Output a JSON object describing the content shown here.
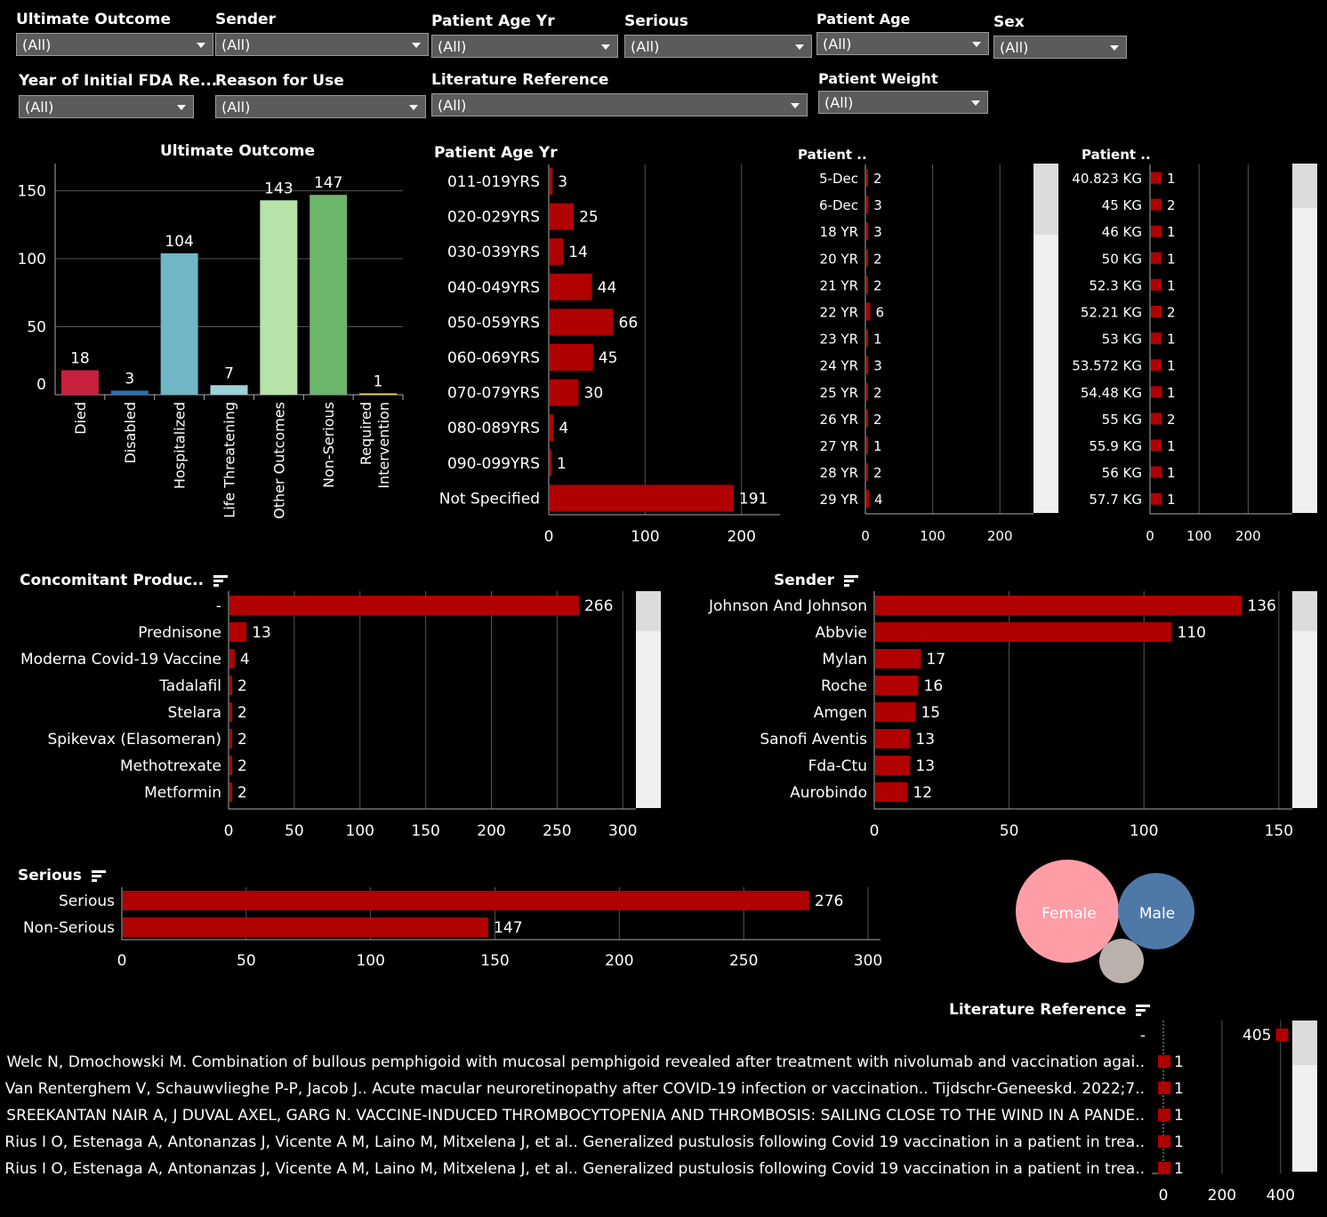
{
  "filters": [
    {
      "label": "Ultimate Outcome",
      "value": "(All)"
    },
    {
      "label": "Sender",
      "value": "(All)"
    },
    {
      "label": "Patient Age Yr",
      "value": "(All)"
    },
    {
      "label": "Serious",
      "value": "(All)"
    },
    {
      "label": "Patient Age",
      "value": "(All)"
    },
    {
      "label": "Sex",
      "value": "(All)"
    },
    {
      "label": "Year of Initial FDA Re...",
      "value": "(All)"
    },
    {
      "label": "Reason for Use",
      "value": "(All)"
    },
    {
      "label": "Literature Reference",
      "value": "(All)"
    },
    {
      "label": "Patient Weight",
      "value": "(All)"
    }
  ],
  "colors": {
    "bar": "#b00000",
    "background": "#000000",
    "grid": "#555555",
    "scroll_track": "#f0f0f0",
    "scroll_thumb": "#dcdcdc"
  },
  "chart_data": [
    {
      "id": "outcome",
      "type": "bar",
      "title": "Ultimate Outcome",
      "categories": [
        "Died",
        "Disabled",
        "Hospitalized",
        "Life Threatening",
        "Other Outcomes",
        "Non-Serious",
        "Required Intervention"
      ],
      "values": [
        18,
        3,
        104,
        7,
        143,
        147,
        1
      ],
      "colors": [
        "#c8203f",
        "#2f6fa8",
        "#6fb6c6",
        "#9cd2d8",
        "#b5e3a8",
        "#6cb66a",
        "#e6d34e"
      ],
      "yticks": [
        0,
        50,
        100,
        150
      ],
      "ylim": [
        0,
        170
      ],
      "grid": true
    },
    {
      "id": "age",
      "type": "bar",
      "orientation": "horizontal",
      "title": "Patient Age Yr",
      "categories": [
        "011-019YRS",
        "020-029YRS",
        "030-039YRS",
        "040-049YRS",
        "050-059YRS",
        "060-069YRS",
        "070-079YRS",
        "080-089YRS",
        "090-099YRS",
        "Not Specified"
      ],
      "values": [
        3,
        25,
        14,
        44,
        66,
        45,
        30,
        4,
        1,
        191
      ],
      "xticks": [
        0,
        100,
        200
      ],
      "xlim": [
        0,
        240
      ],
      "grid": true
    },
    {
      "id": "patient_age",
      "type": "bar",
      "orientation": "horizontal",
      "title": "Patient ..",
      "categories": [
        "5-Dec",
        "6-Dec",
        "18 YR",
        "20 YR",
        "21 YR",
        "22 YR",
        "23 YR",
        "24 YR",
        "25 YR",
        "26 YR",
        "27 YR",
        "28 YR",
        "29 YR"
      ],
      "values": [
        2,
        3,
        3,
        2,
        2,
        6,
        1,
        3,
        2,
        2,
        1,
        2,
        4
      ],
      "xticks": [
        0,
        100,
        200
      ],
      "xlim": [
        0,
        250
      ],
      "grid": true
    },
    {
      "id": "weight",
      "type": "bar",
      "orientation": "horizontal",
      "title": "Patient ..",
      "categories": [
        "40.823 KG",
        "45 KG",
        "46 KG",
        "50 KG",
        "52.3 KG",
        "52.21 KG",
        "53 KG",
        "53.572 KG",
        "54.48 KG",
        "55 KG",
        "55.9 KG",
        "56 KG",
        "57.7 KG"
      ],
      "values": [
        1,
        2,
        1,
        1,
        1,
        2,
        1,
        1,
        1,
        2,
        1,
        1,
        1
      ],
      "xticks": [
        0,
        100,
        200
      ],
      "xlim": [
        0,
        290
      ],
      "grid": true
    },
    {
      "id": "concomitant",
      "type": "bar",
      "orientation": "horizontal",
      "title": "Concomitant Produc..",
      "categories": [
        "-",
        "Prednisone",
        "Moderna Covid-19 Vaccine",
        "Tadalafil",
        "Stelara",
        "Spikevax (Elasomeran)",
        "Methotrexate",
        "Metformin"
      ],
      "values": [
        266,
        13,
        4,
        2,
        2,
        2,
        2,
        2
      ],
      "xticks": [
        0,
        50,
        100,
        150,
        200,
        250,
        300
      ],
      "xlim": [
        0,
        310
      ],
      "grid": true
    },
    {
      "id": "sender",
      "type": "bar",
      "orientation": "horizontal",
      "title": "Sender",
      "categories": [
        "Johnson And Johnson",
        "Abbvie",
        "Mylan",
        "Roche",
        "Amgen",
        "Sanofi Aventis",
        "Fda-Ctu",
        "Aurobindo"
      ],
      "values": [
        136,
        110,
        17,
        16,
        15,
        13,
        13,
        12
      ],
      "xticks": [
        0,
        50,
        100,
        150
      ],
      "xlim": [
        0,
        155
      ],
      "grid": true
    },
    {
      "id": "serious",
      "type": "bar",
      "orientation": "horizontal",
      "title": "Serious",
      "categories": [
        "Serious",
        "Non-Serious"
      ],
      "values": [
        276,
        147
      ],
      "xticks": [
        0,
        50,
        100,
        150,
        200,
        250,
        300
      ],
      "xlim": [
        0,
        305
      ],
      "grid": true
    },
    {
      "id": "sex",
      "type": "bubble",
      "categories": [
        "Female",
        "Male",
        ""
      ],
      "labels": [
        "Female",
        "Male",
        ""
      ],
      "colors": [
        "#ff9da7",
        "#4e79a7",
        "#bab0ac"
      ]
    },
    {
      "id": "literature",
      "type": "bar",
      "orientation": "horizontal",
      "title": "Literature Reference",
      "categories": [
        "-",
        "Welc N, Dmochowski M. Combination of bullous pemphigoid with mucosal pemphigoid revealed after treatment with nivolumab and vaccination agai..",
        "Van Renterghem V, Schauwvlieghe P-P, Jacob J.. Acute macular neuroretinopathy after COVID-19 infection or vaccination.. Tijdschr-Geneeskd. 2022;7..",
        "SREEKANTAN NAIR A, J DUVAL AXEL, GARG N. VACCINE-INDUCED THROMBOCYTOPENIA AND THROMBOSIS: SAILING CLOSE TO THE WIND IN A PANDE..",
        "Rius I O, Estenaga A, Antonanzas J, Vicente A M, Laino M, Mitxelena J, et al.. Generalized pustulosis following Covid 19 vaccination in a patient in trea..",
        "Rius I O, Estenaga A, Antonanzas J, Vicente A M, Laino M, Mitxelena J, et al.. Generalized pustulosis following Covid 19 vaccination in a patient in trea.."
      ],
      "values": [
        405,
        1,
        1,
        1,
        1,
        1
      ],
      "xticks": [
        0,
        200,
        400
      ],
      "xlim": [
        0,
        440
      ],
      "grid": true
    }
  ]
}
